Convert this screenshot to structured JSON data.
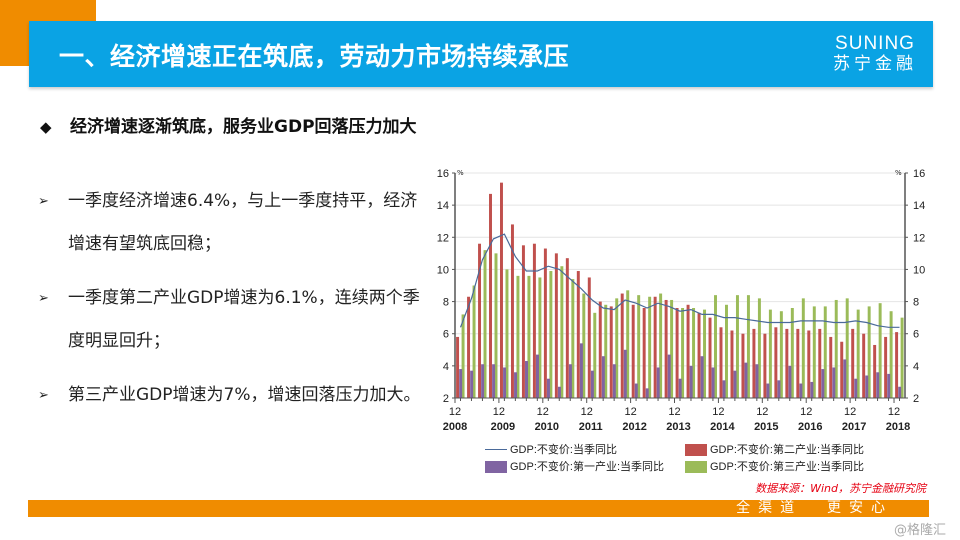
{
  "header": {
    "title": "一、经济增速正在筑底，劳动力市场持续承压",
    "logo_en": "SUNING",
    "logo_cn": "苏宁金融",
    "accent": "#0aa3e4",
    "orange": "#f08c00"
  },
  "subtitle": {
    "icon": "diamond-icon",
    "text": "经济增速逐渐筑底，服务业GDP回落压力加大"
  },
  "bullets": [
    {
      "icon": "arrow-bullet-icon",
      "text": "一季度经济增速6.4%，与上一季度持平，经济增速有望筑底回稳；"
    },
    {
      "icon": "arrow-bullet-icon",
      "text": "一季度第二产业GDP增速为6.1%，连续两个季度明显回升；"
    },
    {
      "icon": "arrow-bullet-icon",
      "text": "第三产业GDP增速为7%，增速回落压力加大。"
    }
  ],
  "chart_data": {
    "type": "bar+line",
    "unit_left": "%",
    "unit_right": "%",
    "ylim": [
      2,
      16
    ],
    "yticks": [
      2,
      4,
      6,
      8,
      10,
      12,
      14,
      16
    ],
    "x_tick_labels": [
      {
        "month": "12",
        "year": "2008"
      },
      {
        "month": "12",
        "year": "2009"
      },
      {
        "month": "12",
        "year": "2010"
      },
      {
        "month": "12",
        "year": "2011"
      },
      {
        "month": "12",
        "year": "2012"
      },
      {
        "month": "12",
        "year": "2013"
      },
      {
        "month": "12",
        "year": "2014"
      },
      {
        "month": "12",
        "year": "2015"
      },
      {
        "month": "12",
        "year": "2016"
      },
      {
        "month": "12",
        "year": "2017"
      },
      {
        "month": "12",
        "year": "2018"
      }
    ],
    "grid": true,
    "legend_position": "bottom",
    "series": [
      {
        "name": "GDP:不变价:当季同比",
        "kind": "line",
        "color": "#4a6a9a",
        "values": [
          6.4,
          8.2,
          10.6,
          11.9,
          12.2,
          10.8,
          9.9,
          9.9,
          10.2,
          10.0,
          9.4,
          8.8,
          8.1,
          7.6,
          7.5,
          8.1,
          7.9,
          7.6,
          7.9,
          7.7,
          7.4,
          7.5,
          7.2,
          7.2,
          7.0,
          7.0,
          6.9,
          6.8,
          6.7,
          6.7,
          6.7,
          6.8,
          6.8,
          6.8,
          6.7,
          6.7,
          6.8,
          6.7,
          6.5,
          6.4,
          6.4
        ]
      },
      {
        "name": "GDP:不变价:第二产业:当季同比",
        "kind": "bar",
        "color": "#c0504d",
        "values": [
          5.8,
          8.3,
          11.6,
          14.7,
          15.4,
          12.8,
          11.5,
          11.6,
          11.3,
          11.0,
          10.7,
          9.9,
          9.5,
          8.0,
          7.7,
          8.5,
          7.8,
          7.6,
          8.3,
          8.1,
          7.6,
          7.8,
          7.3,
          7.0,
          6.4,
          6.2,
          6.0,
          6.3,
          6.0,
          6.4,
          6.3,
          6.3,
          6.2,
          6.3,
          5.8,
          5.5,
          6.3,
          6.0,
          5.3,
          5.8,
          6.1
        ]
      },
      {
        "name": "GDP:不变价:第一产业:当季同比",
        "kind": "bar",
        "color": "#8064a2",
        "values": [
          3.8,
          3.7,
          4.1,
          4.1,
          3.9,
          3.6,
          4.3,
          4.7,
          3.2,
          2.7,
          4.1,
          5.4,
          3.7,
          4.6,
          4.1,
          5.0,
          2.9,
          2.6,
          3.9,
          4.7,
          3.2,
          4.0,
          4.6,
          3.9,
          3.1,
          3.7,
          4.2,
          4.1,
          2.9,
          3.1,
          4.0,
          2.9,
          3.0,
          3.8,
          3.9,
          4.4,
          3.2,
          3.4,
          3.6,
          3.5,
          2.7
        ]
      },
      {
        "name": "GDP:不变价:第三产业:当季同比",
        "kind": "bar",
        "color": "#9bbb59",
        "values": [
          7.2,
          9.0,
          11.2,
          11.0,
          10.0,
          9.6,
          9.6,
          9.5,
          9.9,
          10.2,
          9.4,
          8.5,
          7.3,
          7.8,
          8.2,
          8.7,
          8.4,
          8.3,
          8.5,
          8.1,
          7.6,
          7.6,
          7.5,
          8.4,
          7.8,
          8.4,
          8.4,
          8.2,
          7.5,
          7.4,
          7.6,
          8.2,
          7.7,
          7.7,
          8.1,
          8.2,
          7.5,
          7.7,
          7.9,
          7.4,
          7.0
        ]
      }
    ]
  },
  "source": "数据来源：Wind，苏宁金融研究院",
  "footer": {
    "slogan": "全渠道  更安心"
  },
  "watermark": "@格隆汇"
}
